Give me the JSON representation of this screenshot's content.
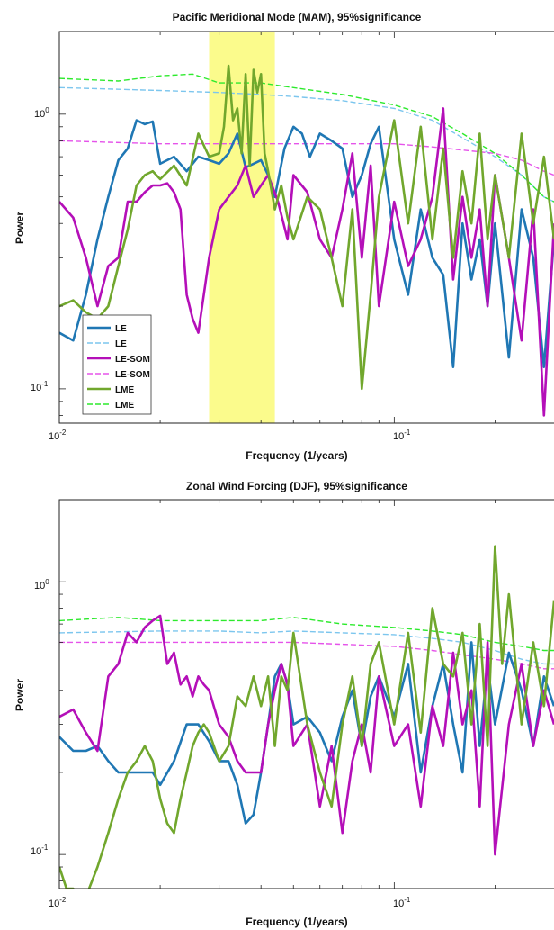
{
  "colors": {
    "LE": "#1f77b4",
    "LE_sig": "#7cc6ee",
    "LESOM": "#b40fb8",
    "LESOM_sig": "#e553ea",
    "LME": "#71a72d",
    "LME_sig": "#2dea2d",
    "highlight": "#fbfb86"
  },
  "chart_data": [
    {
      "type": "line",
      "title": "Pacific Meridional Mode (MAM), 95%significance",
      "xlabel": "Frequency (1/years)",
      "ylabel": "Power",
      "xscale": "log",
      "yscale": "log",
      "xlim": [
        0.01,
        0.3
      ],
      "ylim": [
        0.075,
        2.0
      ],
      "xticks": [
        {
          "base": "10",
          "exp": "-2",
          "value": 0.01
        },
        {
          "base": "10",
          "exp": "-1",
          "value": 0.1
        }
      ],
      "yticks": [
        {
          "base": "10",
          "exp": "0",
          "value": 1
        },
        {
          "base": "10",
          "exp": "-1",
          "value": 0.1
        }
      ],
      "highlight_x": [
        0.028,
        0.044
      ],
      "legend": {
        "position": "lower-left",
        "entries": [
          {
            "label": "LE",
            "series": "LE"
          },
          {
            "label": "LE",
            "series": "LE_sig"
          },
          {
            "label": "LE-SOM",
            "series": "LESOM"
          },
          {
            "label": "LE-SOM",
            "series": "LESOM_sig"
          },
          {
            "label": "LME",
            "series": "LME"
          },
          {
            "label": "LME",
            "series": "LME_sig"
          }
        ]
      },
      "series": [
        {
          "name": "LE",
          "key": "LE",
          "style": "solid",
          "x": [
            0.01,
            0.011,
            0.012,
            0.013,
            0.014,
            0.015,
            0.016,
            0.017,
            0.018,
            0.019,
            0.02,
            0.022,
            0.024,
            0.026,
            0.028,
            0.03,
            0.032,
            0.034,
            0.036,
            0.038,
            0.04,
            0.042,
            0.044,
            0.047,
            0.05,
            0.053,
            0.056,
            0.06,
            0.065,
            0.07,
            0.075,
            0.08,
            0.085,
            0.09,
            0.1,
            0.11,
            0.12,
            0.13,
            0.14,
            0.15,
            0.16,
            0.17,
            0.18,
            0.19,
            0.2,
            0.22,
            0.24,
            0.26,
            0.28,
            0.3
          ],
          "y": [
            0.16,
            0.15,
            0.22,
            0.35,
            0.5,
            0.68,
            0.75,
            0.95,
            0.92,
            0.94,
            0.66,
            0.7,
            0.62,
            0.7,
            0.68,
            0.66,
            0.72,
            0.85,
            0.64,
            0.66,
            0.68,
            0.6,
            0.5,
            0.75,
            0.9,
            0.85,
            0.7,
            0.85,
            0.8,
            0.75,
            0.5,
            0.6,
            0.78,
            0.9,
            0.35,
            0.22,
            0.45,
            0.3,
            0.26,
            0.12,
            0.4,
            0.25,
            0.35,
            0.2,
            0.4,
            0.13,
            0.45,
            0.3,
            0.12,
            0.35
          ]
        },
        {
          "name": "LE",
          "key": "LE_sig",
          "style": "dashed",
          "x": [
            0.01,
            0.02,
            0.03,
            0.04,
            0.05,
            0.07,
            0.1,
            0.13,
            0.16,
            0.2,
            0.24,
            0.28,
            0.3
          ],
          "y": [
            1.25,
            1.22,
            1.2,
            1.18,
            1.16,
            1.12,
            1.05,
            0.95,
            0.82,
            0.7,
            0.6,
            0.5,
            0.48
          ]
        },
        {
          "name": "LE-SOM",
          "key": "LESOM",
          "style": "solid",
          "x": [
            0.01,
            0.011,
            0.012,
            0.013,
            0.014,
            0.015,
            0.016,
            0.017,
            0.018,
            0.019,
            0.02,
            0.021,
            0.022,
            0.023,
            0.024,
            0.025,
            0.026,
            0.027,
            0.028,
            0.03,
            0.032,
            0.034,
            0.036,
            0.038,
            0.04,
            0.042,
            0.045,
            0.048,
            0.05,
            0.055,
            0.06,
            0.065,
            0.07,
            0.075,
            0.08,
            0.085,
            0.09,
            0.1,
            0.11,
            0.12,
            0.13,
            0.14,
            0.15,
            0.16,
            0.17,
            0.18,
            0.19,
            0.2,
            0.22,
            0.24,
            0.26,
            0.28,
            0.3
          ],
          "y": [
            0.48,
            0.42,
            0.3,
            0.2,
            0.28,
            0.3,
            0.48,
            0.48,
            0.52,
            0.55,
            0.55,
            0.56,
            0.52,
            0.45,
            0.22,
            0.18,
            0.16,
            0.22,
            0.3,
            0.45,
            0.5,
            0.55,
            0.65,
            0.5,
            0.55,
            0.6,
            0.48,
            0.35,
            0.6,
            0.52,
            0.35,
            0.3,
            0.45,
            0.72,
            0.3,
            0.65,
            0.2,
            0.48,
            0.28,
            0.35,
            0.5,
            1.05,
            0.25,
            0.5,
            0.3,
            0.45,
            0.2,
            0.6,
            0.3,
            0.15,
            0.45,
            0.08,
            0.4
          ]
        },
        {
          "name": "LE-SOM",
          "key": "LESOM_sig",
          "style": "dashed",
          "x": [
            0.01,
            0.02,
            0.03,
            0.04,
            0.05,
            0.07,
            0.1,
            0.13,
            0.16,
            0.2,
            0.24,
            0.28,
            0.3
          ],
          "y": [
            0.8,
            0.78,
            0.78,
            0.78,
            0.78,
            0.78,
            0.78,
            0.76,
            0.74,
            0.72,
            0.68,
            0.62,
            0.6
          ]
        },
        {
          "name": "LME",
          "key": "LME",
          "style": "solid",
          "x": [
            0.01,
            0.011,
            0.012,
            0.013,
            0.014,
            0.015,
            0.016,
            0.017,
            0.018,
            0.019,
            0.02,
            0.022,
            0.024,
            0.026,
            0.028,
            0.03,
            0.031,
            0.032,
            0.033,
            0.034,
            0.035,
            0.036,
            0.037,
            0.038,
            0.039,
            0.04,
            0.041,
            0.042,
            0.044,
            0.046,
            0.048,
            0.05,
            0.055,
            0.06,
            0.065,
            0.07,
            0.075,
            0.08,
            0.085,
            0.09,
            0.1,
            0.11,
            0.12,
            0.13,
            0.14,
            0.15,
            0.16,
            0.17,
            0.18,
            0.19,
            0.2,
            0.22,
            0.24,
            0.26,
            0.28,
            0.3
          ],
          "y": [
            0.2,
            0.21,
            0.19,
            0.18,
            0.2,
            0.28,
            0.38,
            0.55,
            0.6,
            0.62,
            0.58,
            0.65,
            0.55,
            0.85,
            0.7,
            0.72,
            0.9,
            1.5,
            0.95,
            1.05,
            0.72,
            1.4,
            0.65,
            1.45,
            1.2,
            1.4,
            0.72,
            0.62,
            0.45,
            0.55,
            0.42,
            0.35,
            0.5,
            0.45,
            0.3,
            0.2,
            0.45,
            0.1,
            0.22,
            0.5,
            0.95,
            0.4,
            0.9,
            0.35,
            0.75,
            0.3,
            0.62,
            0.4,
            0.85,
            0.35,
            0.6,
            0.3,
            0.85,
            0.4,
            0.7,
            0.35
          ]
        },
        {
          "name": "LME",
          "key": "LME_sig",
          "style": "dashed",
          "x": [
            0.01,
            0.015,
            0.02,
            0.025,
            0.03,
            0.04,
            0.05,
            0.07,
            0.1,
            0.13,
            0.16,
            0.2,
            0.24,
            0.28,
            0.3
          ],
          "y": [
            1.35,
            1.32,
            1.38,
            1.4,
            1.3,
            1.3,
            1.25,
            1.18,
            1.08,
            0.98,
            0.85,
            0.72,
            0.6,
            0.5,
            0.48
          ]
        }
      ]
    },
    {
      "type": "line",
      "title": "Zonal Wind Forcing (DJF), 95%significance",
      "xlabel": "Frequency (1/years)",
      "ylabel": "Power",
      "xscale": "log",
      "yscale": "log",
      "xlim": [
        0.01,
        0.3
      ],
      "ylim": [
        0.075,
        2.0
      ],
      "xticks": [
        {
          "base": "10",
          "exp": "-2",
          "value": 0.01
        },
        {
          "base": "10",
          "exp": "-1",
          "value": 0.1
        }
      ],
      "yticks": [
        {
          "base": "10",
          "exp": "0",
          "value": 1
        },
        {
          "base": "10",
          "exp": "-1",
          "value": 0.1
        }
      ],
      "series": [
        {
          "name": "LE",
          "key": "LE",
          "style": "solid",
          "x": [
            0.01,
            0.011,
            0.012,
            0.013,
            0.014,
            0.015,
            0.016,
            0.017,
            0.018,
            0.019,
            0.02,
            0.022,
            0.024,
            0.026,
            0.028,
            0.03,
            0.032,
            0.034,
            0.036,
            0.038,
            0.04,
            0.042,
            0.044,
            0.046,
            0.048,
            0.05,
            0.055,
            0.06,
            0.065,
            0.07,
            0.075,
            0.08,
            0.085,
            0.09,
            0.1,
            0.11,
            0.12,
            0.13,
            0.14,
            0.15,
            0.16,
            0.17,
            0.18,
            0.19,
            0.2,
            0.22,
            0.24,
            0.26,
            0.28,
            0.3
          ],
          "y": [
            0.27,
            0.24,
            0.24,
            0.25,
            0.22,
            0.2,
            0.2,
            0.2,
            0.2,
            0.2,
            0.18,
            0.22,
            0.3,
            0.3,
            0.26,
            0.22,
            0.22,
            0.18,
            0.13,
            0.14,
            0.2,
            0.3,
            0.45,
            0.5,
            0.42,
            0.3,
            0.32,
            0.28,
            0.22,
            0.32,
            0.4,
            0.25,
            0.38,
            0.45,
            0.32,
            0.5,
            0.2,
            0.35,
            0.5,
            0.3,
            0.2,
            0.6,
            0.25,
            0.5,
            0.3,
            0.55,
            0.4,
            0.25,
            0.45,
            0.35
          ]
        },
        {
          "name": "LE",
          "key": "LE_sig",
          "style": "dashed",
          "x": [
            0.01,
            0.02,
            0.03,
            0.04,
            0.05,
            0.07,
            0.1,
            0.13,
            0.16,
            0.2,
            0.24,
            0.28,
            0.3
          ],
          "y": [
            0.65,
            0.66,
            0.66,
            0.65,
            0.66,
            0.65,
            0.64,
            0.62,
            0.6,
            0.56,
            0.52,
            0.5,
            0.5
          ]
        },
        {
          "name": "LE-SOM",
          "key": "LESOM",
          "style": "solid",
          "x": [
            0.01,
            0.011,
            0.012,
            0.013,
            0.014,
            0.015,
            0.016,
            0.017,
            0.018,
            0.019,
            0.02,
            0.021,
            0.022,
            0.023,
            0.024,
            0.025,
            0.026,
            0.027,
            0.028,
            0.03,
            0.032,
            0.034,
            0.036,
            0.038,
            0.04,
            0.042,
            0.044,
            0.046,
            0.048,
            0.05,
            0.055,
            0.06,
            0.065,
            0.07,
            0.075,
            0.08,
            0.085,
            0.09,
            0.1,
            0.11,
            0.12,
            0.13,
            0.14,
            0.15,
            0.16,
            0.17,
            0.18,
            0.19,
            0.2,
            0.22,
            0.24,
            0.26,
            0.28,
            0.3
          ],
          "y": [
            0.32,
            0.34,
            0.28,
            0.24,
            0.45,
            0.5,
            0.65,
            0.6,
            0.68,
            0.72,
            0.75,
            0.5,
            0.55,
            0.42,
            0.45,
            0.38,
            0.45,
            0.42,
            0.4,
            0.3,
            0.27,
            0.22,
            0.2,
            0.2,
            0.2,
            0.3,
            0.4,
            0.5,
            0.42,
            0.25,
            0.3,
            0.15,
            0.25,
            0.12,
            0.22,
            0.3,
            0.2,
            0.45,
            0.25,
            0.3,
            0.15,
            0.35,
            0.25,
            0.55,
            0.3,
            0.4,
            0.15,
            0.6,
            0.1,
            0.3,
            0.5,
            0.25,
            0.4,
            0.3
          ]
        },
        {
          "name": "LE-SOM",
          "key": "LESOM_sig",
          "style": "dashed",
          "x": [
            0.01,
            0.02,
            0.03,
            0.04,
            0.05,
            0.07,
            0.1,
            0.13,
            0.16,
            0.2,
            0.24,
            0.28,
            0.3
          ],
          "y": [
            0.6,
            0.6,
            0.6,
            0.6,
            0.6,
            0.59,
            0.58,
            0.56,
            0.54,
            0.52,
            0.5,
            0.48,
            0.48
          ]
        },
        {
          "name": "LME",
          "key": "LME",
          "style": "solid",
          "x": [
            0.01,
            0.0105,
            0.011,
            0.0115,
            0.012,
            0.013,
            0.014,
            0.015,
            0.016,
            0.017,
            0.018,
            0.019,
            0.02,
            0.021,
            0.022,
            0.023,
            0.024,
            0.025,
            0.026,
            0.027,
            0.028,
            0.03,
            0.032,
            0.034,
            0.036,
            0.038,
            0.04,
            0.042,
            0.044,
            0.046,
            0.048,
            0.05,
            0.055,
            0.06,
            0.065,
            0.07,
            0.075,
            0.08,
            0.085,
            0.09,
            0.1,
            0.11,
            0.12,
            0.13,
            0.14,
            0.15,
            0.16,
            0.17,
            0.18,
            0.19,
            0.2,
            0.21,
            0.22,
            0.24,
            0.26,
            0.28,
            0.3
          ],
          "y": [
            0.09,
            0.075,
            0.075,
            0.07,
            0.07,
            0.09,
            0.12,
            0.16,
            0.2,
            0.22,
            0.25,
            0.22,
            0.16,
            0.13,
            0.12,
            0.16,
            0.2,
            0.25,
            0.28,
            0.3,
            0.28,
            0.22,
            0.25,
            0.38,
            0.35,
            0.45,
            0.35,
            0.45,
            0.25,
            0.45,
            0.4,
            0.65,
            0.3,
            0.2,
            0.15,
            0.3,
            0.45,
            0.25,
            0.5,
            0.6,
            0.3,
            0.65,
            0.28,
            0.8,
            0.5,
            0.45,
            0.65,
            0.3,
            0.7,
            0.25,
            1.35,
            0.5,
            0.9,
            0.3,
            0.6,
            0.35,
            0.85
          ]
        },
        {
          "name": "LME",
          "key": "LME_sig",
          "style": "dashed",
          "x": [
            0.01,
            0.015,
            0.02,
            0.03,
            0.04,
            0.05,
            0.07,
            0.1,
            0.13,
            0.16,
            0.2,
            0.24,
            0.28,
            0.3
          ],
          "y": [
            0.72,
            0.74,
            0.72,
            0.72,
            0.72,
            0.74,
            0.7,
            0.68,
            0.66,
            0.64,
            0.6,
            0.58,
            0.56,
            0.56
          ]
        }
      ]
    }
  ]
}
